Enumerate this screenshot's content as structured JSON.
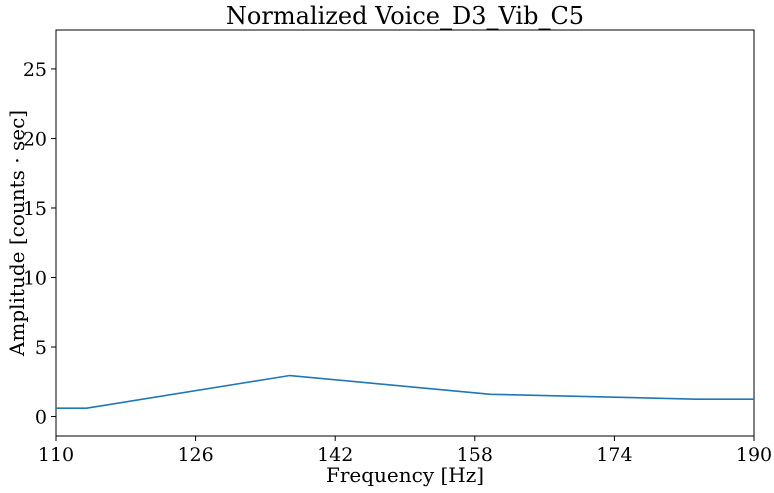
{
  "chart_data": {
    "type": "line",
    "title": "Normalized Voice_D3_Vib_C5",
    "xlabel": "Frequency [Hz]",
    "ylabel": "Amplitude [counts · sec]",
    "xlim": [
      110,
      190
    ],
    "ylim": [
      -1.4,
      27.8
    ],
    "xticks": [
      110,
      126,
      142,
      158,
      174,
      190
    ],
    "yticks": [
      0,
      5,
      10,
      15,
      20,
      25
    ],
    "grid": false,
    "series": [
      {
        "color": "#1f77b4",
        "x": [
          110,
          113.5,
          136.8,
          159.8,
          183.4,
          190
        ],
        "y": [
          0.6,
          0.6,
          2.95,
          1.6,
          1.25,
          1.25
        ]
      }
    ]
  }
}
